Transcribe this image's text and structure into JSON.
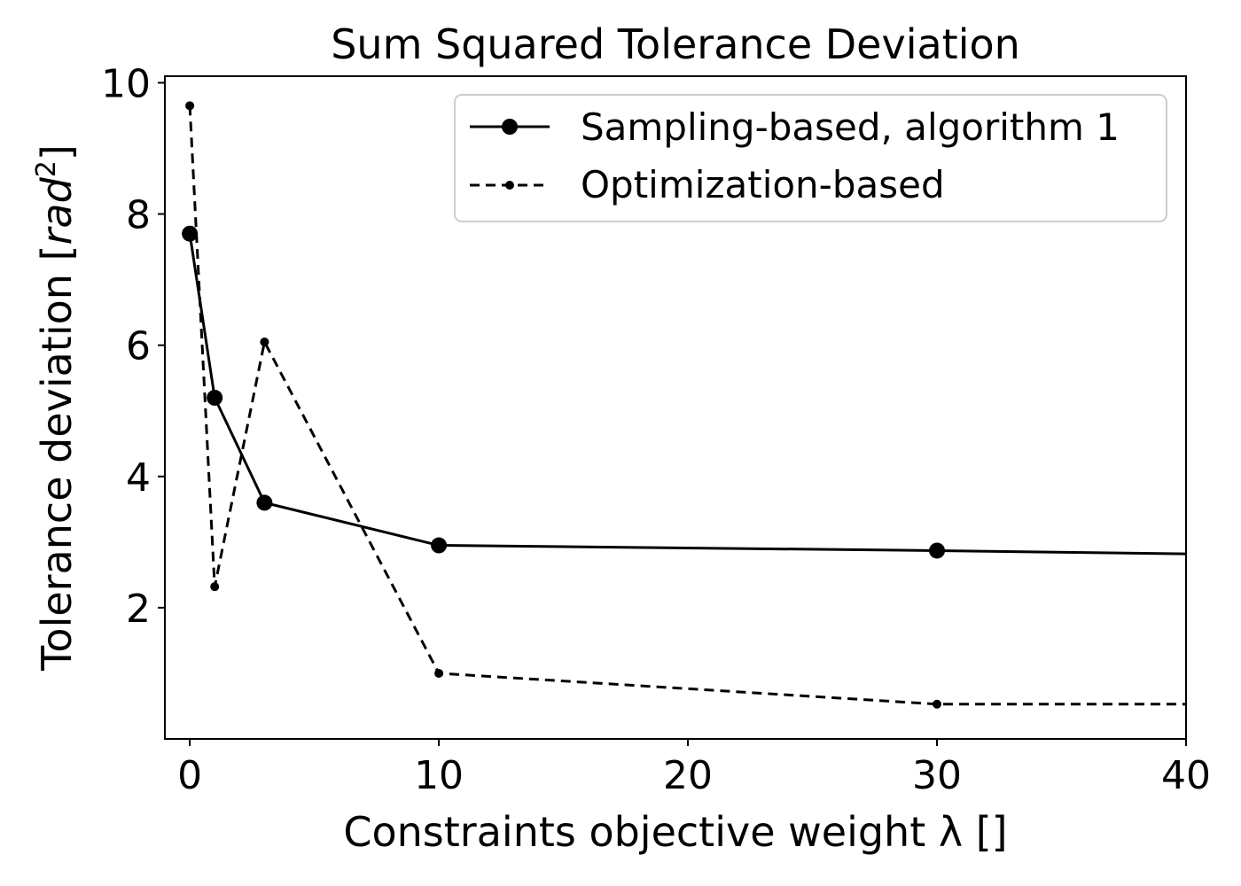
{
  "chart_data": {
    "type": "line",
    "title": "Sum Squared Tolerance Deviation",
    "xlabel": "Constraints objective weight λ []",
    "ylabel_main": "Tolerance deviation [",
    "ylabel_unit": "rad",
    "ylabel_exp": "2",
    "ylabel_close": "]",
    "xlim": [
      -1,
      40
    ],
    "ylim": [
      0,
      10.1
    ],
    "xticks": [
      0,
      10,
      20,
      30,
      40
    ],
    "yticks": [
      2,
      4,
      6,
      8,
      10
    ],
    "xtick_labels": [
      "0",
      "10",
      "20",
      "30",
      "40"
    ],
    "ytick_labels": [
      "2",
      "4",
      "6",
      "8",
      "10"
    ],
    "legend_position": "top-right",
    "grid": false,
    "series": [
      {
        "name": "Sampling-based, algorithm 1",
        "style": "solid",
        "color": "#000000",
        "marker": "large-dot",
        "x": [
          0,
          1,
          3,
          10,
          30,
          40
        ],
        "y": [
          7.7,
          5.2,
          3.6,
          2.95,
          2.87,
          2.82
        ],
        "markers_at": [
          0,
          1,
          2,
          3,
          4
        ]
      },
      {
        "name": "Optimization-based",
        "style": "dashed",
        "color": "#000000",
        "marker": "small-dot",
        "x": [
          0,
          1,
          3,
          10,
          30,
          40
        ],
        "y": [
          9.65,
          2.32,
          6.05,
          1.0,
          0.53,
          0.53
        ],
        "markers_at": [
          0,
          1,
          2,
          3,
          4
        ]
      }
    ]
  }
}
